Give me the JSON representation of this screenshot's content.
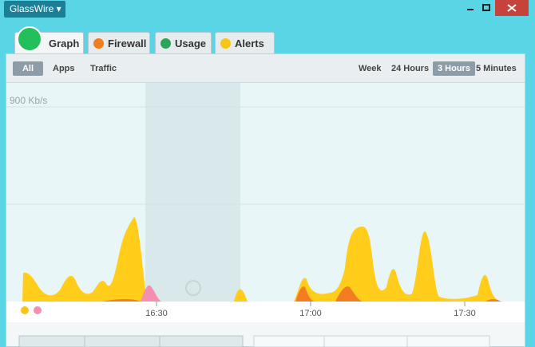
{
  "app_menu": "GlassWire",
  "tabs": [
    "Graph",
    "Firewall",
    "Usage",
    "Alerts"
  ],
  "filters": [
    "All",
    "Apps",
    "Traffic"
  ],
  "ranges": [
    "Week",
    "24 Hours",
    "3 Hours",
    "5 Minutes"
  ],
  "graph": {
    "scale_label": "900 Kb/s",
    "time_labels": [
      "16:30",
      "17:00",
      "17:30"
    ]
  }
}
